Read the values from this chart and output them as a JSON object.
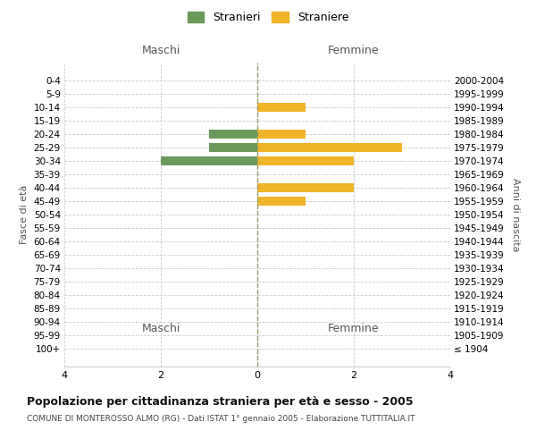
{
  "age_groups": [
    "100+",
    "95-99",
    "90-94",
    "85-89",
    "80-84",
    "75-79",
    "70-74",
    "65-69",
    "60-64",
    "55-59",
    "50-54",
    "45-49",
    "40-44",
    "35-39",
    "30-34",
    "25-29",
    "20-24",
    "15-19",
    "10-14",
    "5-9",
    "0-4"
  ],
  "birth_years": [
    "≤ 1904",
    "1905-1909",
    "1910-1914",
    "1915-1919",
    "1920-1924",
    "1925-1929",
    "1930-1934",
    "1935-1939",
    "1940-1944",
    "1945-1949",
    "1950-1954",
    "1955-1959",
    "1960-1964",
    "1965-1969",
    "1970-1974",
    "1975-1979",
    "1980-1984",
    "1985-1989",
    "1990-1994",
    "1995-1999",
    "2000-2004"
  ],
  "maschi": [
    0,
    0,
    0,
    0,
    0,
    0,
    0,
    0,
    0,
    0,
    0,
    0,
    0,
    0,
    2,
    1,
    1,
    0,
    0,
    0,
    0
  ],
  "femmine": [
    0,
    0,
    0,
    0,
    0,
    0,
    0,
    0,
    0,
    0,
    0,
    1,
    2,
    0,
    2,
    3,
    1,
    0,
    1,
    0,
    0
  ],
  "color_maschi": "#6a9a5a",
  "color_femmine": "#f0b429",
  "label_maschi": "Stranieri",
  "label_femmine": "Straniere",
  "xlabel_left": "Maschi",
  "xlabel_right": "Femmine",
  "ylabel_left": "Fasce di età",
  "ylabel_right": "Anni di nascita",
  "title": "Popolazione per cittadinanza straniera per età e sesso - 2005",
  "subtitle": "COMUNE DI MONTEROSSO ALMO (RG) - Dati ISTAT 1° gennaio 2005 - Elaborazione TUTTITALIA.IT",
  "xlim": 4,
  "bg_color": "#ffffff",
  "grid_color": "#cccccc"
}
